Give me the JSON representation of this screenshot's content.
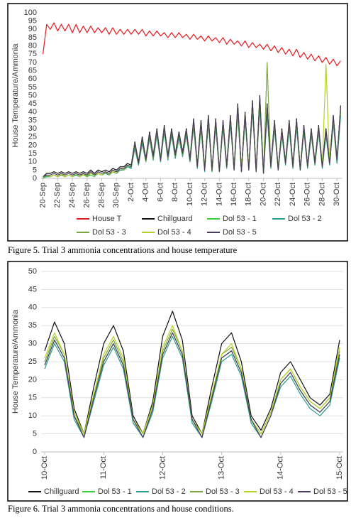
{
  "chart_data": [
    {
      "type": "line",
      "ylabel": "House Temperature/Ammonia",
      "ylim": [
        0,
        100
      ],
      "yticks": [
        0,
        5,
        10,
        15,
        20,
        25,
        30,
        35,
        40,
        45,
        50,
        55,
        60,
        65,
        70,
        75,
        80,
        85,
        90,
        95,
        100
      ],
      "grid": false,
      "categories": [
        "20-Sep",
        null,
        null,
        null,
        "22-Sep",
        null,
        null,
        null,
        "24-Sep",
        null,
        null,
        null,
        "26-Sep",
        null,
        null,
        null,
        "28-Sep",
        null,
        null,
        null,
        "30-Sep",
        null,
        null,
        null,
        "2-Oct",
        null,
        null,
        null,
        "4-Oct",
        null,
        null,
        null,
        "6-Oct",
        null,
        null,
        null,
        "8-Oct",
        null,
        null,
        null,
        "10-Oct",
        null,
        null,
        null,
        "12-Oct",
        null,
        null,
        null,
        "14-Oct",
        null,
        null,
        null,
        "16-Oct",
        null,
        null,
        null,
        "18-Oct",
        null,
        null,
        null,
        "20-Oct",
        null,
        null,
        null,
        "22-Oct",
        null,
        null,
        null,
        "24-Oct",
        null,
        null,
        null,
        "26-Oct",
        null,
        null,
        null,
        "28-Oct",
        null,
        null,
        null,
        "30-Oct",
        null
      ],
      "series": [
        {
          "name": "House T",
          "color": "#e31a1c",
          "values": [
            75,
            93,
            90,
            94,
            89,
            93,
            89,
            93,
            88,
            93,
            88,
            92,
            88,
            92,
            88,
            91,
            88,
            91,
            87,
            91,
            87,
            90,
            87,
            90,
            87,
            90,
            87,
            90,
            86,
            89,
            86,
            89,
            86,
            88,
            85,
            88,
            85,
            88,
            85,
            87,
            84,
            87,
            84,
            86,
            83,
            86,
            83,
            85,
            82,
            85,
            81,
            84,
            81,
            83,
            80,
            83,
            79,
            82,
            79,
            81,
            78,
            81,
            77,
            80,
            76,
            79,
            75,
            78,
            74,
            78,
            73,
            76,
            72,
            75,
            71,
            74,
            70,
            73,
            69,
            72,
            68,
            71
          ]
        },
        {
          "name": "Chillguard",
          "color": "#111111",
          "values": [
            1,
            3,
            3,
            4,
            3,
            4,
            3,
            4,
            3,
            4,
            3,
            4,
            3,
            5,
            3,
            5,
            4,
            5,
            4,
            6,
            5,
            7,
            7,
            9,
            8,
            22,
            10,
            25,
            12,
            28,
            14,
            30,
            12,
            32,
            14,
            30,
            15,
            28,
            16,
            30,
            12,
            36,
            8,
            35,
            6,
            38,
            5,
            36,
            5,
            35,
            8,
            38,
            6,
            45,
            5,
            40,
            6,
            47,
            5,
            50,
            4,
            45,
            8,
            35,
            6,
            30,
            10,
            35,
            8,
            36,
            6,
            32,
            8,
            30,
            10,
            32,
            8,
            30,
            10,
            38,
            12,
            44
          ]
        },
        {
          "name": "Dol 53 - 1",
          "color": "#3ccf3c",
          "values": [
            0,
            1,
            1,
            2,
            1,
            2,
            1,
            2,
            1,
            2,
            1,
            2,
            1,
            2,
            1,
            3,
            2,
            3,
            2,
            4,
            3,
            5,
            5,
            8,
            6,
            19,
            8,
            22,
            10,
            25,
            12,
            27,
            10,
            29,
            12,
            27,
            13,
            25,
            14,
            27,
            10,
            32,
            6,
            31,
            5,
            34,
            4,
            33,
            4,
            32,
            6,
            35,
            5,
            40,
            4,
            37,
            5,
            43,
            4,
            45,
            3,
            40,
            7,
            31,
            5,
            27,
            8,
            31,
            6,
            33,
            5,
            29,
            7,
            27,
            8,
            29,
            7,
            27,
            8,
            34,
            10,
            40
          ]
        },
        {
          "name": "Dol 53 - 2",
          "color": "#2a9d8f",
          "values": [
            1,
            1,
            1,
            2,
            1,
            2,
            1,
            2,
            1,
            2,
            1,
            3,
            1,
            3,
            2,
            3,
            2,
            3,
            2,
            4,
            3,
            5,
            5,
            7,
            6,
            18,
            8,
            21,
            10,
            24,
            11,
            26,
            10,
            28,
            11,
            26,
            12,
            24,
            13,
            26,
            10,
            31,
            6,
            30,
            4,
            33,
            4,
            31,
            4,
            31,
            6,
            33,
            5,
            39,
            4,
            35,
            5,
            41,
            4,
            43,
            3,
            39,
            6,
            30,
            5,
            26,
            8,
            30,
            6,
            31,
            5,
            28,
            6,
            26,
            8,
            28,
            6,
            26,
            8,
            33,
            9,
            38
          ]
        },
        {
          "name": "Dol 53 - 3",
          "color": "#7aa83c",
          "values": [
            0,
            2,
            1,
            2,
            1,
            2,
            1,
            2,
            1,
            3,
            1,
            3,
            1,
            3,
            2,
            3,
            2,
            4,
            2,
            4,
            3,
            6,
            5,
            8,
            7,
            20,
            9,
            23,
            10,
            26,
            12,
            28,
            11,
            30,
            12,
            28,
            13,
            26,
            14,
            28,
            11,
            33,
            7,
            32,
            5,
            35,
            4,
            34,
            4,
            33,
            7,
            36,
            5,
            42,
            4,
            38,
            5,
            44,
            4,
            47,
            3,
            70,
            7,
            33,
            5,
            28,
            9,
            33,
            7,
            34,
            5,
            30,
            7,
            28,
            9,
            30,
            7,
            28,
            9,
            36,
            11,
            42
          ]
        },
        {
          "name": "Dol 53 - 4",
          "color": "#b8d02a",
          "values": [
            1,
            2,
            1,
            2,
            1,
            3,
            1,
            2,
            1,
            3,
            1,
            2,
            2,
            3,
            2,
            3,
            2,
            4,
            3,
            4,
            4,
            6,
            6,
            8,
            7,
            21,
            9,
            24,
            11,
            27,
            13,
            29,
            11,
            31,
            13,
            29,
            14,
            27,
            15,
            29,
            11,
            34,
            7,
            33,
            5,
            36,
            5,
            35,
            4,
            34,
            7,
            37,
            6,
            43,
            5,
            39,
            6,
            45,
            5,
            48,
            4,
            43,
            7,
            34,
            6,
            29,
            9,
            34,
            7,
            35,
            6,
            31,
            7,
            29,
            9,
            31,
            7,
            69,
            9,
            36,
            11,
            43
          ]
        },
        {
          "name": "Dol 53 - 5",
          "color": "#4b3b5c",
          "values": [
            1,
            2,
            2,
            3,
            2,
            3,
            2,
            3,
            2,
            3,
            2,
            3,
            2,
            4,
            2,
            4,
            3,
            4,
            3,
            5,
            4,
            6,
            6,
            8,
            7,
            21,
            9,
            24,
            11,
            27,
            13,
            29,
            11,
            31,
            13,
            29,
            14,
            27,
            15,
            29,
            11,
            35,
            7,
            34,
            5,
            37,
            5,
            35,
            4,
            34,
            7,
            37,
            5,
            44,
            4,
            39,
            5,
            46,
            4,
            49,
            3,
            44,
            7,
            34,
            5,
            29,
            9,
            34,
            7,
            35,
            5,
            31,
            7,
            29,
            9,
            31,
            7,
            29,
            9,
            37,
            11,
            43
          ]
        }
      ]
    },
    {
      "type": "line",
      "ylabel": "House Temperature/Ammonia",
      "ylim": [
        0,
        50
      ],
      "yticks": [
        0,
        5,
        10,
        15,
        20,
        25,
        30,
        35,
        40,
        45,
        50
      ],
      "grid": true,
      "categories": [
        "10-Oct",
        null,
        null,
        null,
        null,
        null,
        "11-Oct",
        null,
        null,
        null,
        null,
        null,
        "12-Oct",
        null,
        null,
        null,
        null,
        null,
        "13-Oct",
        null,
        null,
        null,
        null,
        null,
        "14-Oct",
        null,
        null,
        null,
        null,
        null,
        "15-Oct"
      ],
      "series": [
        {
          "name": "Chillguard",
          "color": "#111111",
          "values": [
            28,
            36,
            30,
            12,
            5,
            18,
            30,
            35,
            28,
            10,
            5,
            14,
            32,
            39,
            31,
            10,
            5,
            18,
            30,
            33,
            25,
            10,
            6,
            12,
            22,
            25,
            20,
            15,
            13,
            16,
            31
          ]
        },
        {
          "name": "Dol 53 - 1",
          "color": "#3ccf3c",
          "values": [
            24,
            31,
            26,
            10,
            4,
            15,
            25,
            30,
            24,
            8,
            4,
            12,
            27,
            33,
            27,
            8,
            4,
            15,
            26,
            28,
            22,
            8,
            4,
            10,
            19,
            22,
            17,
            13,
            11,
            14,
            27
          ]
        },
        {
          "name": "Dol 53 - 2",
          "color": "#2a9d8f",
          "values": [
            23,
            30,
            25,
            9,
            4,
            14,
            24,
            29,
            23,
            8,
            4,
            11,
            26,
            32,
            26,
            8,
            4,
            14,
            25,
            27,
            21,
            8,
            4,
            10,
            18,
            21,
            16,
            12,
            10,
            13,
            26
          ]
        },
        {
          "name": "Dol 53 - 3",
          "color": "#7aa83c",
          "values": [
            25,
            32,
            27,
            10,
            5,
            16,
            26,
            31,
            25,
            9,
            5,
            13,
            28,
            34,
            28,
            9,
            5,
            16,
            27,
            29,
            23,
            9,
            5,
            11,
            20,
            23,
            18,
            14,
            12,
            15,
            28
          ]
        },
        {
          "name": "Dol 53 - 4",
          "color": "#b8d02a",
          "values": [
            26,
            33,
            27,
            11,
            5,
            16,
            27,
            32,
            26,
            9,
            5,
            13,
            29,
            35,
            28,
            9,
            5,
            16,
            27,
            30,
            23,
            9,
            5,
            11,
            20,
            23,
            18,
            14,
            12,
            15,
            29
          ]
        },
        {
          "name": "Dol 53 - 5",
          "color": "#4b3b5c",
          "values": [
            24,
            31,
            26,
            10,
            4,
            15,
            25,
            30,
            24,
            9,
            4,
            12,
            27,
            33,
            27,
            9,
            4,
            15,
            26,
            28,
            22,
            9,
            4,
            10,
            19,
            22,
            17,
            13,
            11,
            14,
            27
          ]
        }
      ]
    }
  ],
  "captions": [
    "Figure 5.  Trial 3 ammonia concentrations and house temperature",
    "Figure 6.  Trial 3 ammonia concentrations and house conditions."
  ]
}
